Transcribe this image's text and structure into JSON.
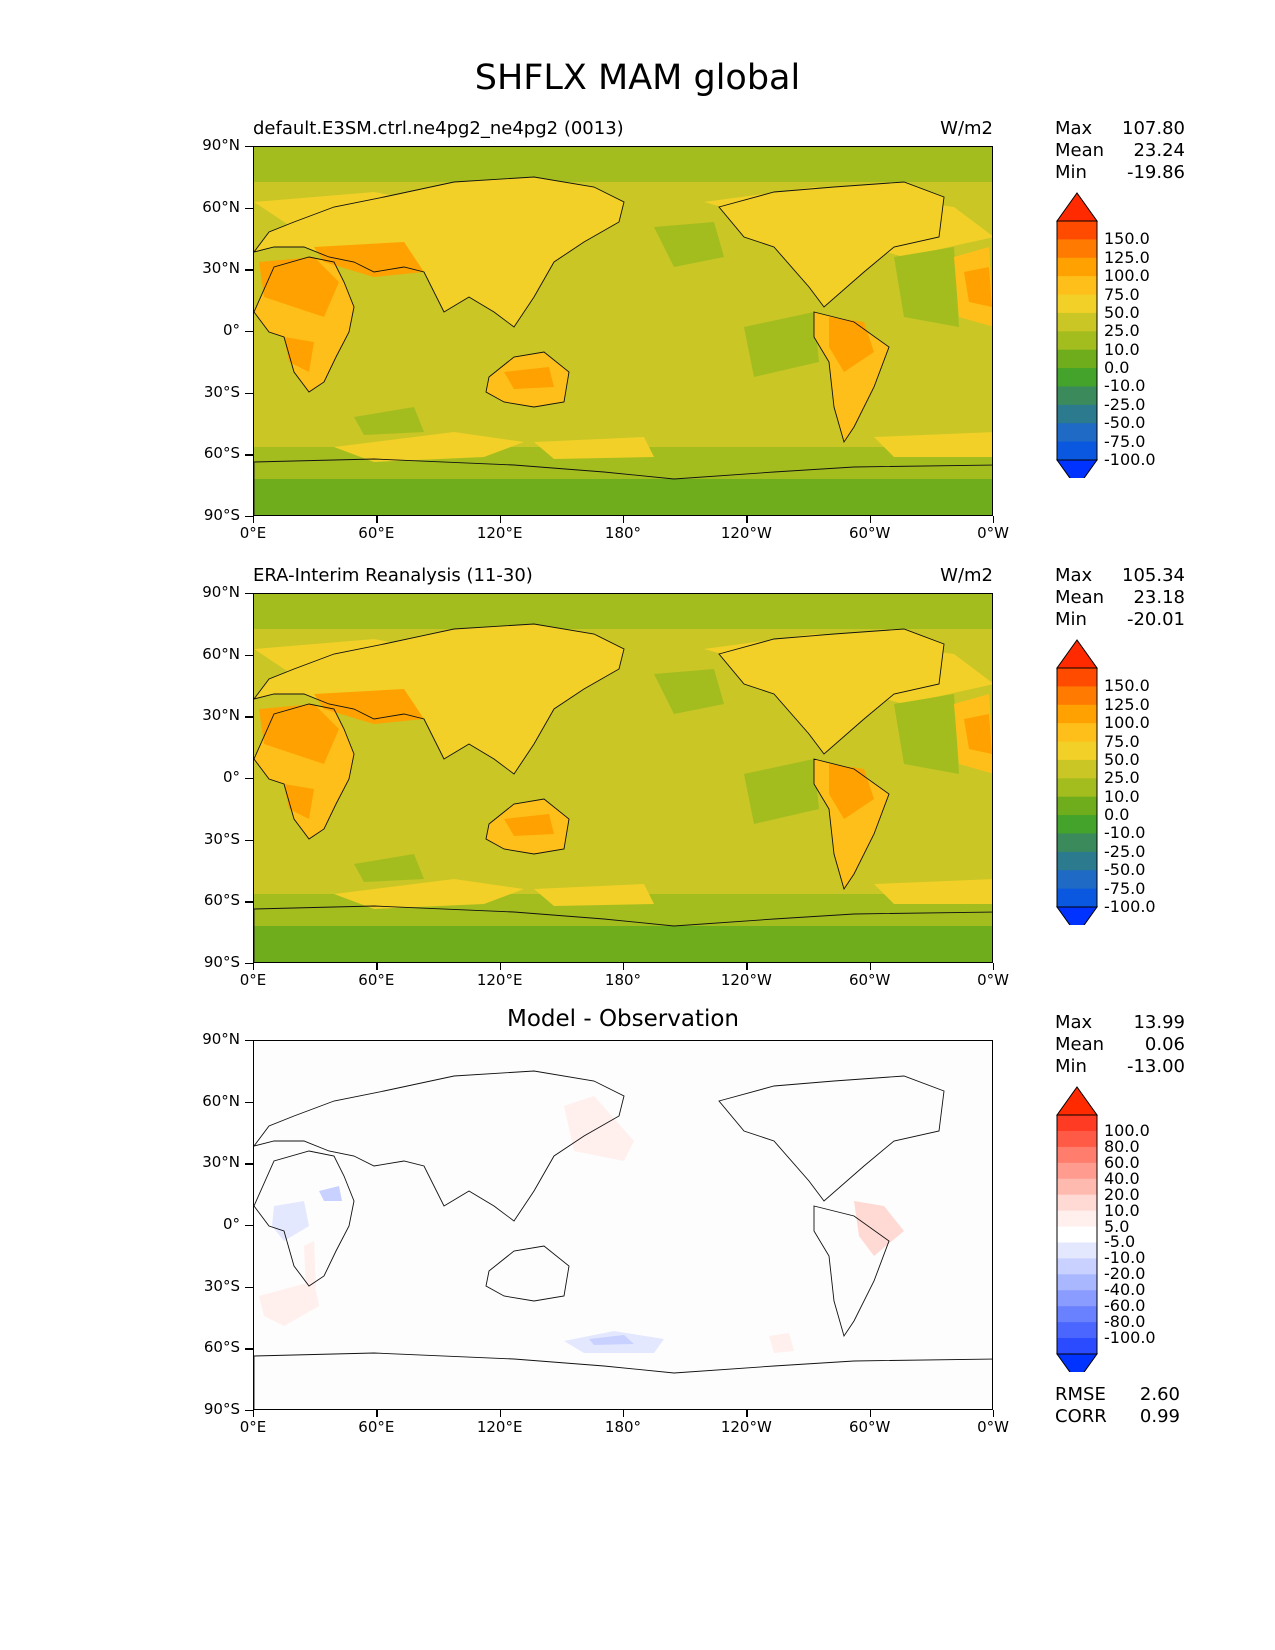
{
  "title": "SHFLX MAM global",
  "x_ticks": [
    "0°E",
    "60°E",
    "120°E",
    "180°",
    "120°W",
    "60°W",
    "0°W"
  ],
  "y_ticks": [
    "90°N",
    "60°N",
    "30°N",
    "0°",
    "30°S",
    "60°S",
    "90°S"
  ],
  "panels": [
    {
      "title_left": "default.E3SM.ctrl.ne4pg2_ne4pg2 (0013)",
      "title_right": "W/m2",
      "title_center": "",
      "stats": {
        "max_label": "Max",
        "max": "107.80",
        "mean_label": "Mean",
        "mean": "23.24",
        "min_label": "Min",
        "min": "-19.86"
      },
      "colorbar": {
        "labels": [
          "150.0",
          "125.0",
          "100.0",
          "75.0",
          "50.0",
          "25.0",
          "10.0",
          "0.0",
          "-10.0",
          "-25.0",
          "-50.0",
          "-75.0",
          "-100.0"
        ],
        "colors": [
          "#ff2a00",
          "#ff4b00",
          "#ff7a00",
          "#ffa100",
          "#ffbf1a",
          "#f2d027",
          "#c9c626",
          "#a3bd1f",
          "#70ad1c",
          "#43a32a",
          "#3b8a5c",
          "#2b7a8e",
          "#1f6ac4",
          "#0a58e0",
          "#0033ff"
        ]
      }
    },
    {
      "title_left": "ERA-Interim Reanalysis (11-30)",
      "title_right": "W/m2",
      "title_center": "",
      "stats": {
        "max_label": "Max",
        "max": "105.34",
        "mean_label": "Mean",
        "mean": "23.18",
        "min_label": "Min",
        "min": "-20.01"
      },
      "colorbar": {
        "labels": [
          "150.0",
          "125.0",
          "100.0",
          "75.0",
          "50.0",
          "25.0",
          "10.0",
          "0.0",
          "-10.0",
          "-25.0",
          "-50.0",
          "-75.0",
          "-100.0"
        ],
        "colors": [
          "#ff2a00",
          "#ff4b00",
          "#ff7a00",
          "#ffa100",
          "#ffbf1a",
          "#f2d027",
          "#c9c626",
          "#a3bd1f",
          "#70ad1c",
          "#43a32a",
          "#3b8a5c",
          "#2b7a8e",
          "#1f6ac4",
          "#0a58e0",
          "#0033ff"
        ]
      }
    },
    {
      "title_left": "",
      "title_right": "",
      "title_center": "Model - Observation",
      "stats": {
        "max_label": "Max",
        "max": "13.99",
        "mean_label": "Mean",
        "mean": "0.06",
        "min_label": "Min",
        "min": "-13.00"
      },
      "colorbar": {
        "labels": [
          "100.0",
          "80.0",
          "60.0",
          "40.0",
          "20.0",
          "10.0",
          "5.0",
          "-5.0",
          "-10.0",
          "-20.0",
          "-40.0",
          "-60.0",
          "-80.0",
          "-100.0"
        ],
        "colors": [
          "#ff2a00",
          "#ff3b23",
          "#ff5a45",
          "#ff7d6c",
          "#ff9c8f",
          "#ffbab0",
          "#ffd9d3",
          "#fff0ee",
          "#ffffff",
          "#e4e8ff",
          "#c8d1ff",
          "#a9b7ff",
          "#8a9cff",
          "#6a81ff",
          "#4a66ff",
          "#2a4bff",
          "#0033ff"
        ]
      },
      "metrics": {
        "rmse_label": "RMSE",
        "rmse": "2.60",
        "corr_label": "CORR",
        "corr": "0.99"
      }
    }
  ]
}
